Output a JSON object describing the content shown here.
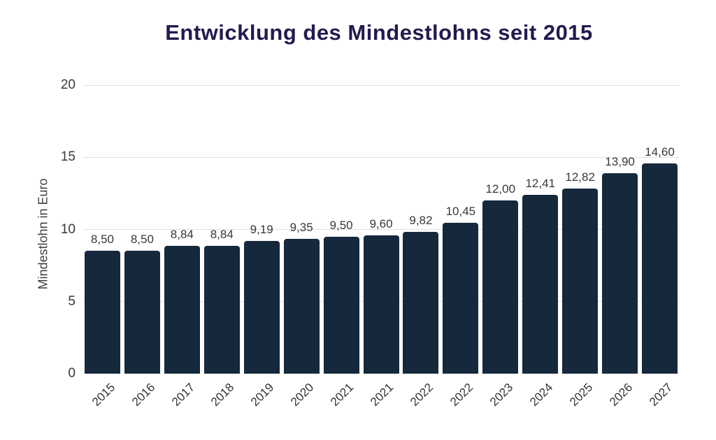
{
  "title": "Entwicklung des Mindestlohns seit 2015",
  "chart_data": {
    "type": "bar",
    "title": "Entwicklung des Mindestlohns seit 2015",
    "categories": [
      "2015",
      "2016",
      "2017",
      "2018",
      "2019",
      "2020",
      "2021",
      "2021",
      "2022",
      "2022",
      "2023",
      "2024",
      "2025",
      "2026",
      "2027"
    ],
    "values": [
      8.5,
      8.5,
      8.84,
      8.84,
      9.19,
      9.35,
      9.5,
      9.6,
      9.82,
      10.45,
      12.0,
      12.41,
      12.82,
      13.9,
      14.6
    ],
    "value_labels": [
      "8,50",
      "8,50",
      "8,84",
      "8,84",
      "9,19",
      "9,35",
      "9,50",
      "9,60",
      "9,82",
      "10,45",
      "12,00",
      "12,41",
      "12,82",
      "13,90",
      "14,60"
    ],
    "xlabel": "",
    "ylabel": "Mindestlohn in Euro",
    "ylim": [
      0,
      20
    ],
    "yticks": [
      0,
      5,
      10,
      15,
      20
    ],
    "grid": true,
    "legend": false
  },
  "colors": {
    "bar": "#16283c",
    "title": "#221a4f",
    "grid": "#e0e0e0",
    "tick_label": "#3a3a3a",
    "value_label": "#383838",
    "background": "#ffffff"
  }
}
